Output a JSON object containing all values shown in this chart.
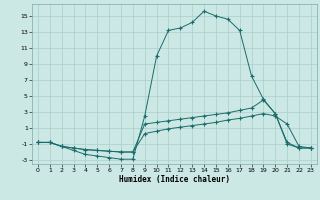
{
  "title": "",
  "xlabel": "Humidex (Indice chaleur)",
  "background_color": "#cce8e4",
  "grid_color": "#aaceca",
  "line_color": "#1a6b6b",
  "xlim": [
    -0.5,
    23.5
  ],
  "ylim": [
    -3.5,
    16.5
  ],
  "yticks": [
    -3,
    -1,
    1,
    3,
    5,
    7,
    9,
    11,
    13,
    15
  ],
  "xticks": [
    0,
    1,
    2,
    3,
    4,
    5,
    6,
    7,
    8,
    9,
    10,
    11,
    12,
    13,
    14,
    15,
    16,
    17,
    18,
    19,
    20,
    21,
    22,
    23
  ],
  "line1_x": [
    0,
    1,
    2,
    3,
    4,
    5,
    6,
    7,
    8,
    9,
    10,
    11,
    12,
    13,
    14,
    15,
    16,
    17,
    18,
    19,
    20,
    21,
    22,
    23
  ],
  "line1_y": [
    -0.8,
    -0.8,
    -1.3,
    -1.8,
    -2.3,
    -2.5,
    -2.7,
    -2.9,
    -2.9,
    2.5,
    10.0,
    13.2,
    13.5,
    14.2,
    15.6,
    15.0,
    14.6,
    13.2,
    7.5,
    4.6,
    2.8,
    -0.8,
    -1.5,
    -1.5
  ],
  "line2_x": [
    0,
    1,
    2,
    3,
    4,
    5,
    6,
    7,
    8,
    9,
    10,
    11,
    12,
    13,
    14,
    15,
    16,
    17,
    18,
    19,
    20,
    21,
    22,
    23
  ],
  "line2_y": [
    -0.8,
    -0.8,
    -1.3,
    -1.5,
    -1.7,
    -1.8,
    -1.9,
    -2.0,
    -2.0,
    1.5,
    1.7,
    1.9,
    2.1,
    2.3,
    2.5,
    2.7,
    2.9,
    3.2,
    3.5,
    4.5,
    2.8,
    -1.0,
    -1.5,
    -1.5
  ],
  "line3_x": [
    0,
    1,
    2,
    3,
    4,
    5,
    6,
    7,
    8,
    9,
    10,
    11,
    12,
    13,
    14,
    15,
    16,
    17,
    18,
    19,
    20,
    21,
    22,
    23
  ],
  "line3_y": [
    -0.8,
    -0.8,
    -1.3,
    -1.5,
    -1.7,
    -1.8,
    -1.9,
    -2.0,
    -2.0,
    0.3,
    0.6,
    0.9,
    1.1,
    1.3,
    1.5,
    1.7,
    2.0,
    2.2,
    2.5,
    2.8,
    2.5,
    1.5,
    -1.3,
    -1.5
  ]
}
